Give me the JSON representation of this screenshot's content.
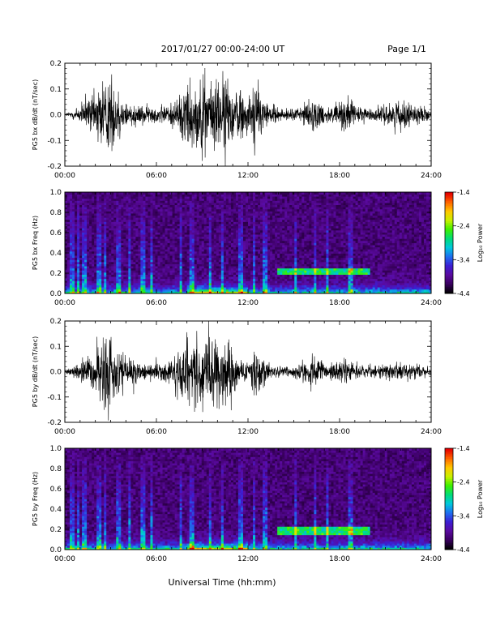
{
  "header": {
    "date_range": "2017/01/27  00:00-24:00 UT",
    "page": "Page 1/1"
  },
  "footer": {
    "xlabel": "Universal Time (hh:mm)"
  },
  "colorbar": {
    "label": "Log₁₀ Power",
    "ticks": [
      "-1.4",
      "-2.4",
      "-3.4",
      "-4.4"
    ],
    "range": [
      -4.4,
      -1.4
    ],
    "colormap": [
      "#000000",
      "#3a0060",
      "#5a0aa0",
      "#3c1ed2",
      "#1e6ef0",
      "#00c8dc",
      "#00dc78",
      "#3cf000",
      "#c8f000",
      "#ffc800",
      "#ff6400",
      "#e60000"
    ]
  },
  "colors": {
    "trace": "#000000",
    "axis": "#000000",
    "background": "#ffffff"
  },
  "chart_data": [
    {
      "type": "line",
      "title": "",
      "ylabel": "PG5 bx dB/dt (nT/sec)",
      "xlabel": "",
      "xlim": [
        0,
        24
      ],
      "ylim": [
        -0.2,
        0.2
      ],
      "x_ticks": [
        "00:00",
        "06:00",
        "12:00",
        "18:00",
        "24:00"
      ],
      "y_ticks": [
        "-0.2",
        "-0.1",
        "0.0",
        "0.1",
        "0.2"
      ],
      "grid": false,
      "series": [
        {
          "x": [
            0,
            1,
            2,
            2.5,
            3,
            4,
            5,
            6,
            7,
            7.5,
            8,
            8.5,
            9,
            9.5,
            10,
            10.5,
            11,
            11.5,
            12,
            12.5,
            13,
            14,
            15,
            16,
            16.5,
            17,
            18,
            18.5,
            19,
            20,
            21,
            22,
            23,
            24
          ],
          "values": [
            0.005,
            0.05,
            0.12,
            0.2,
            0.19,
            0.07,
            0.05,
            0.04,
            0.06,
            0.1,
            0.2,
            0.14,
            0.2,
            0.15,
            0.2,
            0.2,
            0.12,
            0.15,
            0.08,
            0.2,
            0.08,
            0.03,
            0.03,
            0.07,
            0.08,
            0.04,
            0.06,
            0.1,
            0.05,
            0.03,
            0.05,
            0.07,
            0.05,
            0.02
          ]
        }
      ]
    },
    {
      "type": "heatmap",
      "title": "",
      "ylabel": "PG5 bx Freq (Hz)",
      "xlabel": "",
      "xlim": [
        0,
        24
      ],
      "ylim": [
        0,
        1
      ],
      "x_ticks": [
        "00:00",
        "06:00",
        "12:00",
        "18:00",
        "24:00"
      ],
      "y_ticks": [
        "0.0",
        "0.2",
        "0.4",
        "0.6",
        "0.8",
        "1.0"
      ],
      "value_range": [
        -4.4,
        -1.4
      ],
      "features": {
        "background_log_power": -4.2,
        "low_frequency_band_log_power": -2.8,
        "peak_log_power": -1.6,
        "peak_time_range": [
          8,
          12
        ],
        "band_time_range": [
          14,
          20
        ],
        "band_frequency_hz": [
          0.18,
          0.25
        ],
        "vertical_streak_hours": [
          0.5,
          0.9,
          1.3,
          2.2,
          2.6,
          3.5,
          4.2,
          5.1,
          5.7,
          7.6,
          8.3,
          9.5,
          10.3,
          11.5,
          12.4,
          13.1,
          15.1,
          16.4,
          17.2,
          18.7
        ]
      }
    },
    {
      "type": "line",
      "title": "",
      "ylabel": "PG5 by dB/dt (nT/sec)",
      "xlabel": "",
      "xlim": [
        0,
        24
      ],
      "ylim": [
        -0.2,
        0.2
      ],
      "x_ticks": [
        "00:00",
        "06:00",
        "12:00",
        "18:00",
        "24:00"
      ],
      "y_ticks": [
        "-0.2",
        "-0.1",
        "0.0",
        "0.1",
        "0.2"
      ],
      "grid": false,
      "series": [
        {
          "x": [
            0,
            1,
            2,
            2.5,
            3,
            4,
            5,
            6,
            7,
            7.5,
            8,
            8.5,
            9,
            9.5,
            10,
            10.5,
            11,
            11.5,
            12,
            12.5,
            13,
            14,
            15,
            16,
            16.5,
            17,
            18,
            18.5,
            19,
            20,
            21,
            22,
            23,
            24
          ],
          "values": [
            0.01,
            0.04,
            0.13,
            0.2,
            0.2,
            0.09,
            0.05,
            0.04,
            0.07,
            0.12,
            0.2,
            0.2,
            0.12,
            0.2,
            0.2,
            0.2,
            0.15,
            0.05,
            0.06,
            0.12,
            0.06,
            0.03,
            0.03,
            0.07,
            0.09,
            0.04,
            0.05,
            0.06,
            0.04,
            0.03,
            0.04,
            0.05,
            0.04,
            0.02
          ]
        }
      ]
    },
    {
      "type": "heatmap",
      "title": "",
      "ylabel": "PG5 by Freq (Hz)",
      "xlabel": "",
      "xlim": [
        0,
        24
      ],
      "ylim": [
        0,
        1
      ],
      "x_ticks": [
        "00:00",
        "06:00",
        "12:00",
        "18:00",
        "24:00"
      ],
      "y_ticks": [
        "0.0",
        "0.2",
        "0.4",
        "0.6",
        "0.8",
        "1.0"
      ],
      "value_range": [
        -4.4,
        -1.4
      ],
      "features": {
        "background_log_power": -4.2,
        "low_frequency_band_log_power": -2.8,
        "peak_log_power": -1.6,
        "peak_time_range": [
          8,
          12
        ],
        "band_time_range": [
          14,
          20
        ],
        "band_frequency_hz": [
          0.15,
          0.22
        ],
        "vertical_streak_hours": [
          0.5,
          0.9,
          1.3,
          2.2,
          2.6,
          3.5,
          4.2,
          5.1,
          5.7,
          7.6,
          8.3,
          9.5,
          10.3,
          11.5,
          12.4,
          13.1,
          15.1,
          16.4,
          17.2,
          18.7
        ]
      }
    }
  ]
}
